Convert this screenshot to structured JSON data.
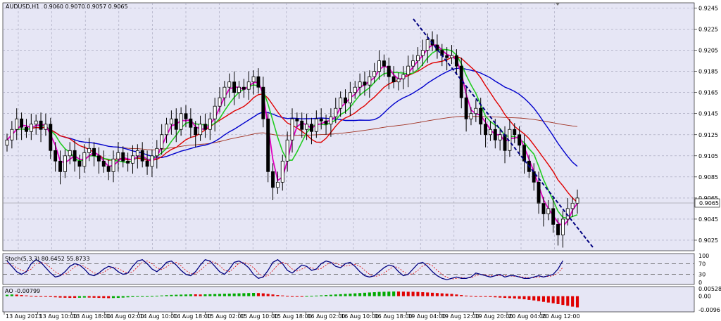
{
  "header": {
    "symbol": "AUDUSD,H1",
    "ohlc": "0.9060 0.9070 0.9057 0.9065"
  },
  "price_label": "0.9065",
  "stoch": {
    "title": "Stoch(5,3,3) 80.6452 55.8733",
    "ticks": [
      "100",
      "70",
      "30",
      "0"
    ]
  },
  "ao": {
    "title": "AO -0.00799",
    "ticks": [
      "0.00528",
      "0.00",
      "-0.0096"
    ]
  },
  "colors": {
    "bg": "#e6e6f5",
    "grid": "#a0a0b8",
    "candle": "#000000",
    "ma_blue": "#0000cc",
    "ma_red": "#e00000",
    "ma_green": "#22cc22",
    "ma_magenta": "#e000c0",
    "ma_brown": "#a03020",
    "ao_up": "#00aa00",
    "ao_down": "#e00000",
    "stoch_main": "#000080",
    "stoch_signal": "#e00000"
  },
  "chart_data": {
    "type": "candlestick",
    "symbol": "AUDUSD",
    "timeframe": "H1",
    "price_ticks": [
      "0.9245",
      "0.9225",
      "0.9205",
      "0.9185",
      "0.9165",
      "0.9145",
      "0.9125",
      "0.9105",
      "0.9085",
      "0.9065",
      "0.9045",
      "0.9025"
    ],
    "ylim": [
      0.9015,
      0.925
    ],
    "time_labels": [
      "13 Aug 2013",
      "13 Aug 10:00",
      "13 Aug 18:00",
      "14 Aug 02:00",
      "14 Aug 10:00",
      "14 Aug 18:00",
      "15 Aug 02:00",
      "15 Aug 10:00",
      "15 Aug 18:00",
      "16 Aug 02:00",
      "16 Aug 10:00",
      "16 Aug 18:00",
      "19 Aug 04:00",
      "19 Aug 12:00",
      "19 Aug 20:00",
      "20 Aug 04:00",
      "20 Aug 12:00"
    ],
    "close": [
      0.912,
      0.913,
      0.914,
      0.9132,
      0.9128,
      0.9135,
      0.9138,
      0.913,
      0.9135,
      0.911,
      0.91,
      0.909,
      0.9105,
      0.911,
      0.91,
      0.9095,
      0.9108,
      0.9112,
      0.9105,
      0.91,
      0.9095,
      0.909,
      0.9102,
      0.9108,
      0.91,
      0.9098,
      0.9105,
      0.911,
      0.91,
      0.9095,
      0.9105,
      0.9112,
      0.9125,
      0.9135,
      0.914,
      0.913,
      0.9145,
      0.914,
      0.9132,
      0.9125,
      0.9135,
      0.913,
      0.914,
      0.9152,
      0.916,
      0.917,
      0.9175,
      0.9165,
      0.917,
      0.9168,
      0.9175,
      0.918,
      0.917,
      0.914,
      0.909,
      0.9075,
      0.908,
      0.91,
      0.912,
      0.914,
      0.9138,
      0.913,
      0.9135,
      0.9128,
      0.914,
      0.9138,
      0.9135,
      0.9142,
      0.915,
      0.916,
      0.9155,
      0.9165,
      0.917,
      0.9175,
      0.9172,
      0.918,
      0.9185,
      0.9195,
      0.919,
      0.918,
      0.9175,
      0.9178,
      0.9182,
      0.919,
      0.9195,
      0.92,
      0.9205,
      0.9215,
      0.921,
      0.9205,
      0.92,
      0.9198,
      0.92,
      0.919,
      0.916,
      0.914,
      0.9145,
      0.915,
      0.9135,
      0.9125,
      0.913,
      0.912,
      0.9125,
      0.911,
      0.913,
      0.9125,
      0.9115,
      0.91,
      0.909,
      0.908,
      0.906,
      0.905,
      0.9055,
      0.904,
      0.903,
      0.9045,
      0.9055,
      0.906,
      0.9065
    ],
    "stoch_main": [
      80,
      60,
      40,
      30,
      40,
      70,
      85,
      75,
      55,
      35,
      20,
      25,
      40,
      60,
      70,
      65,
      50,
      30,
      25,
      35,
      50,
      60,
      55,
      40,
      30,
      35,
      60,
      80,
      85,
      70,
      50,
      40,
      55,
      75,
      80,
      65,
      45,
      30,
      25,
      40,
      65,
      85,
      80,
      60,
      40,
      30,
      50,
      75,
      80,
      70,
      55,
      30,
      15,
      20,
      45,
      75,
      85,
      70,
      45,
      35,
      50,
      65,
      60,
      45,
      50,
      70,
      80,
      75,
      60,
      55,
      70,
      75,
      60,
      40,
      25,
      20,
      25,
      40,
      55,
      65,
      60,
      40,
      25,
      30,
      50,
      70,
      75,
      60,
      40,
      25,
      15,
      10,
      15,
      20,
      15,
      15,
      20,
      35,
      30,
      25,
      20,
      25,
      30,
      20,
      25,
      25,
      20,
      15,
      15,
      20,
      25,
      20,
      25,
      30,
      50,
      81
    ],
    "stoch_signal": [
      70,
      65,
      55,
      45,
      40,
      50,
      70,
      75,
      70,
      55,
      40,
      28,
      30,
      42,
      58,
      65,
      60,
      48,
      35,
      32,
      38,
      50,
      57,
      52,
      42,
      35,
      40,
      58,
      75,
      80,
      70,
      55,
      48,
      58,
      72,
      75,
      62,
      45,
      32,
      32,
      45,
      62,
      78,
      75,
      62,
      45,
      40,
      55,
      72,
      75,
      68,
      55,
      35,
      22,
      25,
      45,
      65,
      75,
      68,
      50,
      42,
      50,
      58,
      55,
      48,
      52,
      65,
      75,
      72,
      65,
      60,
      65,
      68,
      60,
      45,
      30,
      22,
      25,
      35,
      48,
      60,
      55,
      40,
      30,
      32,
      45,
      62,
      70,
      62,
      45,
      30,
      18,
      12,
      15,
      18,
      16,
      17,
      25,
      30,
      28,
      25,
      24,
      26,
      25,
      24,
      23,
      22,
      19,
      17,
      17,
      20,
      22,
      22,
      25,
      35,
      56
    ],
    "ao": [
      0.001,
      0.0012,
      0.0011,
      0.0008,
      0.0005,
      0.0002,
      -0.0001,
      -0.0003,
      -0.0005,
      -0.0006,
      -0.0008,
      -0.001,
      -0.0011,
      -0.0012,
      -0.0012,
      -0.0011,
      -0.001,
      -0.001,
      -0.0011,
      -0.0012,
      -0.0013,
      -0.0014,
      -0.0013,
      -0.0012,
      -0.001,
      -0.0008,
      -0.0006,
      -0.0004,
      -0.0002,
      0.0,
      0.0001,
      0.0003,
      0.0005,
      0.0007,
      0.0009,
      0.001,
      0.0011,
      0.0012,
      0.0013,
      0.0013,
      0.0012,
      0.0013,
      0.0014,
      0.0015,
      0.0016,
      0.0017,
      0.0018,
      0.0019,
      0.002,
      0.0021,
      0.0022,
      0.0023,
      0.0022,
      0.002,
      0.0016,
      0.0012,
      0.0008,
      0.0005,
      0.0002,
      0.0,
      -0.0001,
      -0.0001,
      0.0001,
      0.0002,
      0.0004,
      0.0006,
      0.0008,
      0.001,
      0.0012,
      0.0014,
      0.0016,
      0.0018,
      0.002,
      0.0022,
      0.0024,
      0.0026,
      0.0028,
      0.003,
      0.0031,
      0.0032,
      0.0033,
      0.0033,
      0.0032,
      0.0031,
      0.0031,
      0.003,
      0.0028,
      0.0026,
      0.0024,
      0.0022,
      0.002,
      0.0018,
      0.0016,
      0.0012,
      0.0008,
      0.0004,
      0.0002,
      0.0,
      -0.0002,
      -0.0004,
      -0.0006,
      -0.0008,
      -0.001,
      -0.0012,
      -0.0014,
      -0.0016,
      -0.0019,
      -0.0022,
      -0.0026,
      -0.003,
      -0.0035,
      -0.004,
      -0.0045,
      -0.005,
      -0.0056,
      -0.0062,
      -0.0068,
      -0.0074,
      -0.0079,
      -0.008
    ]
  }
}
